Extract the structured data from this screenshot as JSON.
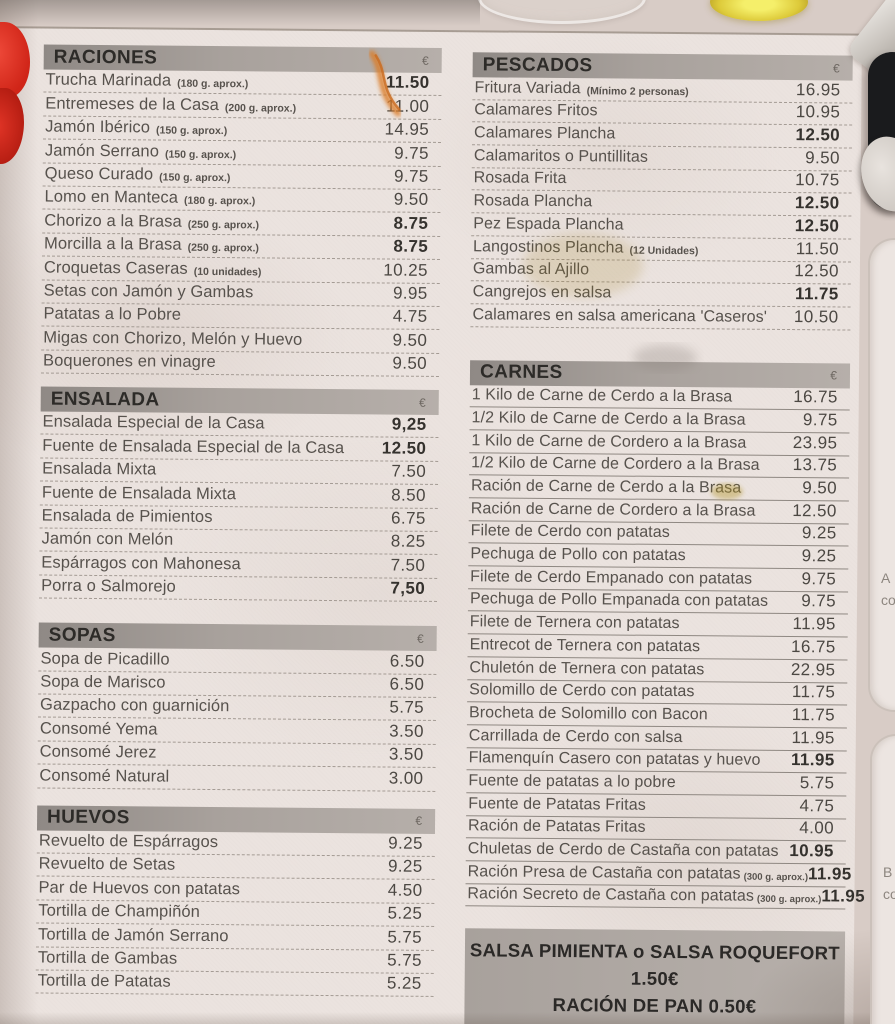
{
  "menu": {
    "currency_symbol": "€",
    "left_sections": [
      {
        "title": "RACIONES",
        "divider": "dashed",
        "items": [
          {
            "name": "Trucha Marinada",
            "note": "(180 g. aprox.)",
            "price": "11.50",
            "bold": true
          },
          {
            "name": "Entremeses de la Casa",
            "note": "(200 g. aprox.)",
            "price": "11.00"
          },
          {
            "name": "Jamón Ibérico",
            "note": "(150 g. aprox.)",
            "price": "14.95"
          },
          {
            "name": "Jamón Serrano",
            "note": "(150 g. aprox.)",
            "price": "9.75"
          },
          {
            "name": "Queso Curado",
            "note": "(150 g. aprox.)",
            "price": "9.75"
          },
          {
            "name": "Lomo en Manteca",
            "note": "(180 g. aprox.)",
            "price": "9.50"
          },
          {
            "name": "Chorizo a la Brasa",
            "note": "(250 g. aprox.)",
            "price": "8.75",
            "bold": true
          },
          {
            "name": "Morcilla a la Brasa",
            "note": "(250 g. aprox.)",
            "price": "8.75",
            "bold": true
          },
          {
            "name": "Croquetas Caseras",
            "note": "(10 unidades)",
            "price": "10.25"
          },
          {
            "name": "Setas con Jamón y Gambas",
            "price": "9.95"
          },
          {
            "name": "Patatas a lo Pobre",
            "price": "4.75"
          },
          {
            "name": "Migas con Chorizo, Melón y Huevo",
            "price": "9.50"
          },
          {
            "name": "Boquerones en vinagre",
            "price": "9.50"
          }
        ]
      },
      {
        "title": "ENSALADA",
        "divider": "dashed",
        "items": [
          {
            "name": "Ensalada Especial de la Casa",
            "price": "9,25",
            "bold": true
          },
          {
            "name": "Fuente de Ensalada Especial de la Casa",
            "price": "12.50",
            "bold": true
          },
          {
            "name": "Ensalada Mixta",
            "price": "7.50"
          },
          {
            "name": "Fuente de Ensalada Mixta",
            "price": "8.50"
          },
          {
            "name": "Ensalada de Pimientos",
            "price": "6.75"
          },
          {
            "name": "Jamón con Melón",
            "price": "8.25"
          },
          {
            "name": "Espárragos con Mahonesa",
            "price": "7.50"
          },
          {
            "name": "Porra o Salmorejo",
            "price": "7,50",
            "bold": true
          }
        ]
      },
      {
        "title": "SOPAS",
        "divider": "dashed",
        "items": [
          {
            "name": "Sopa de Picadillo",
            "price": "6.50"
          },
          {
            "name": "Sopa de Marisco",
            "price": "6.50"
          },
          {
            "name": "Gazpacho con guarnición",
            "price": "5.75"
          },
          {
            "name": "Consomé Yema",
            "price": "3.50"
          },
          {
            "name": "Consomé Jerez",
            "price": "3.50"
          },
          {
            "name": "Consomé Natural",
            "price": "3.00"
          }
        ]
      },
      {
        "title": "HUEVOS",
        "divider": "dashed",
        "items": [
          {
            "name": "Revuelto de Espárragos",
            "price": "9.25"
          },
          {
            "name": "Revuelto de Setas",
            "price": "9.25"
          },
          {
            "name": "Par de Huevos con patatas",
            "price": "4.50"
          },
          {
            "name": "Tortilla de Champiñón",
            "price": "5.25"
          },
          {
            "name": "Tortilla de Jamón Serrano",
            "price": "5.75"
          },
          {
            "name": "Tortilla de Gambas",
            "price": "5.75"
          },
          {
            "name": "Tortilla de Patatas",
            "price": "5.25"
          }
        ]
      }
    ],
    "right_sections": [
      {
        "title": "PESCADOS",
        "divider": "dashed",
        "items": [
          {
            "name": "Fritura Variada",
            "note": "(Mínimo 2 personas)",
            "price": "16.95"
          },
          {
            "name": "Calamares Fritos",
            "price": "10.95"
          },
          {
            "name": "Calamares Plancha",
            "price": "12.50",
            "bold": true
          },
          {
            "name": "Calamaritos o Puntillitas",
            "price": "9.50"
          },
          {
            "name": "Rosada Frita",
            "price": "10.75"
          },
          {
            "name": "Rosada Plancha",
            "price": "12.50",
            "bold": true
          },
          {
            "name": "Pez Espada Plancha",
            "price": "12.50",
            "bold": true
          },
          {
            "name": "Langostinos Plancha",
            "note": "(12 Unidades)",
            "price": "11.50"
          },
          {
            "name": "Gambas al Ajillo",
            "price": "12.50"
          },
          {
            "name": "Cangrejos en salsa",
            "price": "11.75",
            "bold": true
          },
          {
            "name": "Calamares en salsa americana 'Caseros'",
            "price": "10.50"
          }
        ]
      },
      {
        "title": "CARNES",
        "divider": "solid",
        "items": [
          {
            "name": "1 Kilo de Carne de Cerdo a la Brasa",
            "price": "16.75"
          },
          {
            "name": "1/2 Kilo de Carne de Cerdo a la Brasa",
            "price": "9.75"
          },
          {
            "name": "1 Kilo de Carne de Cordero a la Brasa",
            "price": "23.95"
          },
          {
            "name": "1/2 Kilo de Carne de Cordero a la Brasa",
            "price": "13.75"
          },
          {
            "name": "Ración de Carne de Cerdo a la Brasa",
            "price": "9.50"
          },
          {
            "name": "Ración de Carne de Cordero a la Brasa",
            "price": "12.50"
          },
          {
            "name": "Filete de Cerdo con patatas",
            "price": "9.25"
          },
          {
            "name": "Pechuga de Pollo con patatas",
            "price": "9.25"
          },
          {
            "name": "Filete de Cerdo Empanado con patatas",
            "price": "9.75"
          },
          {
            "name": "Pechuga de Pollo Empanada con patatas",
            "price": "9.75"
          },
          {
            "name": "Filete de Ternera con patatas",
            "price": "11.95"
          },
          {
            "name": "Entrecot de Ternera con patatas",
            "price": "16.75"
          },
          {
            "name": "Chuletón de Ternera con patatas",
            "price": "22.95"
          },
          {
            "name": "Solomillo de Cerdo con patatas",
            "price": "11.75"
          },
          {
            "name": "Brocheta de Solomillo con Bacon",
            "price": "11.75"
          },
          {
            "name": "Carrillada de Cerdo con salsa",
            "price": "11.95"
          },
          {
            "name": "Flamenquín Casero con patatas y huevo",
            "price": "11.95",
            "bold": true
          },
          {
            "name": "Fuente de patatas a lo pobre",
            "price": "5.75"
          },
          {
            "name": "Fuente de Patatas Fritas",
            "price": "4.75"
          },
          {
            "name": "Ración de Patatas Fritas",
            "price": "4.00"
          },
          {
            "name": "Chuletas de Cerdo de Castaña con patatas",
            "price": "10.95",
            "bold": true
          },
          {
            "name": "Ración Presa de Castaña con patatas",
            "note": "(300 g. aprox.)",
            "price": "11.95",
            "bold": true
          },
          {
            "name": "Ración Secreto de Castaña con patatas",
            "note": "(300 g. aprox.)",
            "price": "11.95",
            "bold": true
          }
        ]
      }
    ],
    "footer": {
      "line1": "SALSA PIMIENTA o SALSA ROQUEFORT 1.50€",
      "line2": "RACIÓN DE PAN 0.50€"
    }
  },
  "side_objects": {
    "card_fragments": [
      "A",
      "co",
      "B",
      "co"
    ]
  },
  "colors": {
    "paper": "#ebe3df",
    "table": "#d8ccc6",
    "header_bar": "#a8a19c",
    "header_text": "#2d2b28",
    "item_text": "#57524d",
    "napkin_red": "#d02518",
    "stain_orange": "#db7e2c",
    "glass_yellow": "#ddca3a",
    "device_black": "#1a1b1d"
  }
}
